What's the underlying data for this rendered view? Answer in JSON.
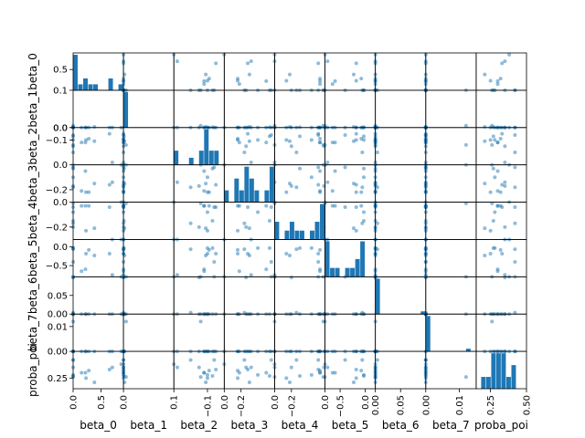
{
  "chart_data": {
    "type": "scatter",
    "subtype": "scatter-matrix",
    "variables": [
      "beta_0",
      "beta_1",
      "beta_2",
      "beta_3",
      "beta_4",
      "beta_5",
      "beta_6",
      "beta_7",
      "proba_poi"
    ],
    "axis_labels": [
      "beta_0",
      "beta_1",
      "beta_2",
      "beta_3",
      "beta_4",
      "beta_5",
      "beta_6",
      "beta_7",
      "proba_poi"
    ],
    "ranges": [
      [
        0,
        0.9
      ],
      [
        0,
        0.1
      ],
      [
        -0.3,
        0
      ],
      [
        -0.3,
        0
      ],
      [
        -0.3,
        0
      ],
      [
        -0.8,
        0.2
      ],
      [
        0,
        0.1
      ],
      [
        0,
        0.015
      ],
      [
        0.15,
        0.5
      ]
    ],
    "x_ticks": [
      {
        "ticks": [
          0,
          0.5
        ],
        "labels": [
          "0.0",
          "0.5"
        ]
      },
      {
        "ticks": [
          0,
          0.1
        ],
        "labels": [
          "0.0",
          "0.1"
        ]
      },
      {
        "ticks": [
          -0.1,
          0
        ],
        "labels": [
          "−0.1",
          "0.0"
        ]
      },
      {
        "ticks": [
          -0.2,
          0
        ],
        "labels": [
          "−0.2",
          "0.0"
        ]
      },
      {
        "ticks": [
          -0.2,
          0
        ],
        "labels": [
          "−0.2",
          "0.0"
        ]
      },
      {
        "ticks": [
          -0.5,
          0
        ],
        "labels": [
          "−0.5",
          "0.0"
        ]
      },
      {
        "ticks": [
          0,
          0.05
        ],
        "labels": [
          "0.00",
          "0.05"
        ]
      },
      {
        "ticks": [
          0,
          0.01
        ],
        "labels": [
          "0.00",
          "0.01"
        ]
      },
      {
        "ticks": [
          0.25,
          0.5
        ],
        "labels": [
          "0.25",
          "0.50"
        ]
      }
    ],
    "y_ticks": [
      {
        "ticks": [
          0.5
        ],
        "labels": [
          "0.5"
        ]
      },
      {
        "ticks": [
          0,
          0.1
        ],
        "labels": [
          "0.0",
          "0.1"
        ]
      },
      {
        "ticks": [
          -0.1,
          0
        ],
        "labels": [
          "−0.1",
          "0.0"
        ]
      },
      {
        "ticks": [
          -0.2,
          0
        ],
        "labels": [
          "−0.2",
          "0.0"
        ]
      },
      {
        "ticks": [
          -0.2,
          0
        ],
        "labels": [
          "−0.2",
          "0.0"
        ]
      },
      {
        "ticks": [
          -0.5,
          0
        ],
        "labels": [
          "−0.5",
          "0.0"
        ]
      },
      {
        "ticks": [
          0,
          0.05
        ],
        "labels": [
          "0.00",
          "0.05"
        ]
      },
      {
        "ticks": [
          0,
          0.01
        ],
        "labels": [
          "0.00",
          "0.01"
        ]
      },
      {
        "ticks": [
          0.25
        ],
        "labels": [
          "0.25"
        ]
      }
    ],
    "points": [
      [
        0.0,
        0.0,
        -0.06,
        -0.02,
        -0.04,
        -0.4,
        0.1,
        0.0,
        0.42
      ],
      [
        0.86,
        0.0,
        -0.3,
        -0.3,
        -0.3,
        -0.8,
        0.0,
        0.0,
        0.38
      ],
      [
        0.23,
        0.0,
        -0.1,
        -0.22,
        -0.23,
        -0.18,
        0.0,
        0.0,
        0.25
      ],
      [
        0.38,
        0.002,
        -0.11,
        -0.15,
        -0.21,
        -0.23,
        0.0,
        0.0,
        0.21
      ],
      [
        0.28,
        0.0,
        -0.09,
        -0.22,
        -0.03,
        -0.08,
        0.0,
        0.0,
        0.32
      ],
      [
        0.15,
        0.0,
        -0.12,
        -0.21,
        -0.03,
        -0.65,
        0.0,
        0.0,
        0.3
      ],
      [
        0.65,
        0.0,
        -0.05,
        -0.16,
        -0.04,
        -0.18,
        0.0,
        0.0,
        0.33
      ],
      [
        0.22,
        0.0,
        -0.12,
        -0.05,
        -0.03,
        -0.6,
        0.0,
        0.0,
        0.3
      ],
      [
        0.0,
        0.005,
        -0.14,
        0.0,
        -0.01,
        -0.8,
        0.0,
        0.012,
        0.26
      ],
      [
        0.0,
        0.001,
        -0.07,
        -0.03,
        -0.15,
        -0.03,
        0.0,
        0.0,
        0.27
      ],
      [
        0.7,
        0.0,
        -0.28,
        -0.14,
        -0.3,
        -0.75,
        0.0,
        0.0,
        0.35
      ],
      [
        0.0,
        0.0,
        -0.1,
        -0.1,
        -0.08,
        -0.03,
        0.0,
        0.0,
        0.28
      ],
      [
        0.0,
        0.0,
        -0.15,
        -0.17,
        -0.2,
        -0.82,
        0.0,
        0.0,
        0.35
      ],
      [
        0.0,
        0.0,
        -0.2,
        -0.18,
        -0.17,
        -0.06,
        0.004,
        0.0,
        0.42
      ]
    ],
    "color": "#1f77b4",
    "background": "#ffffff",
    "grid": false,
    "legend": "none"
  }
}
